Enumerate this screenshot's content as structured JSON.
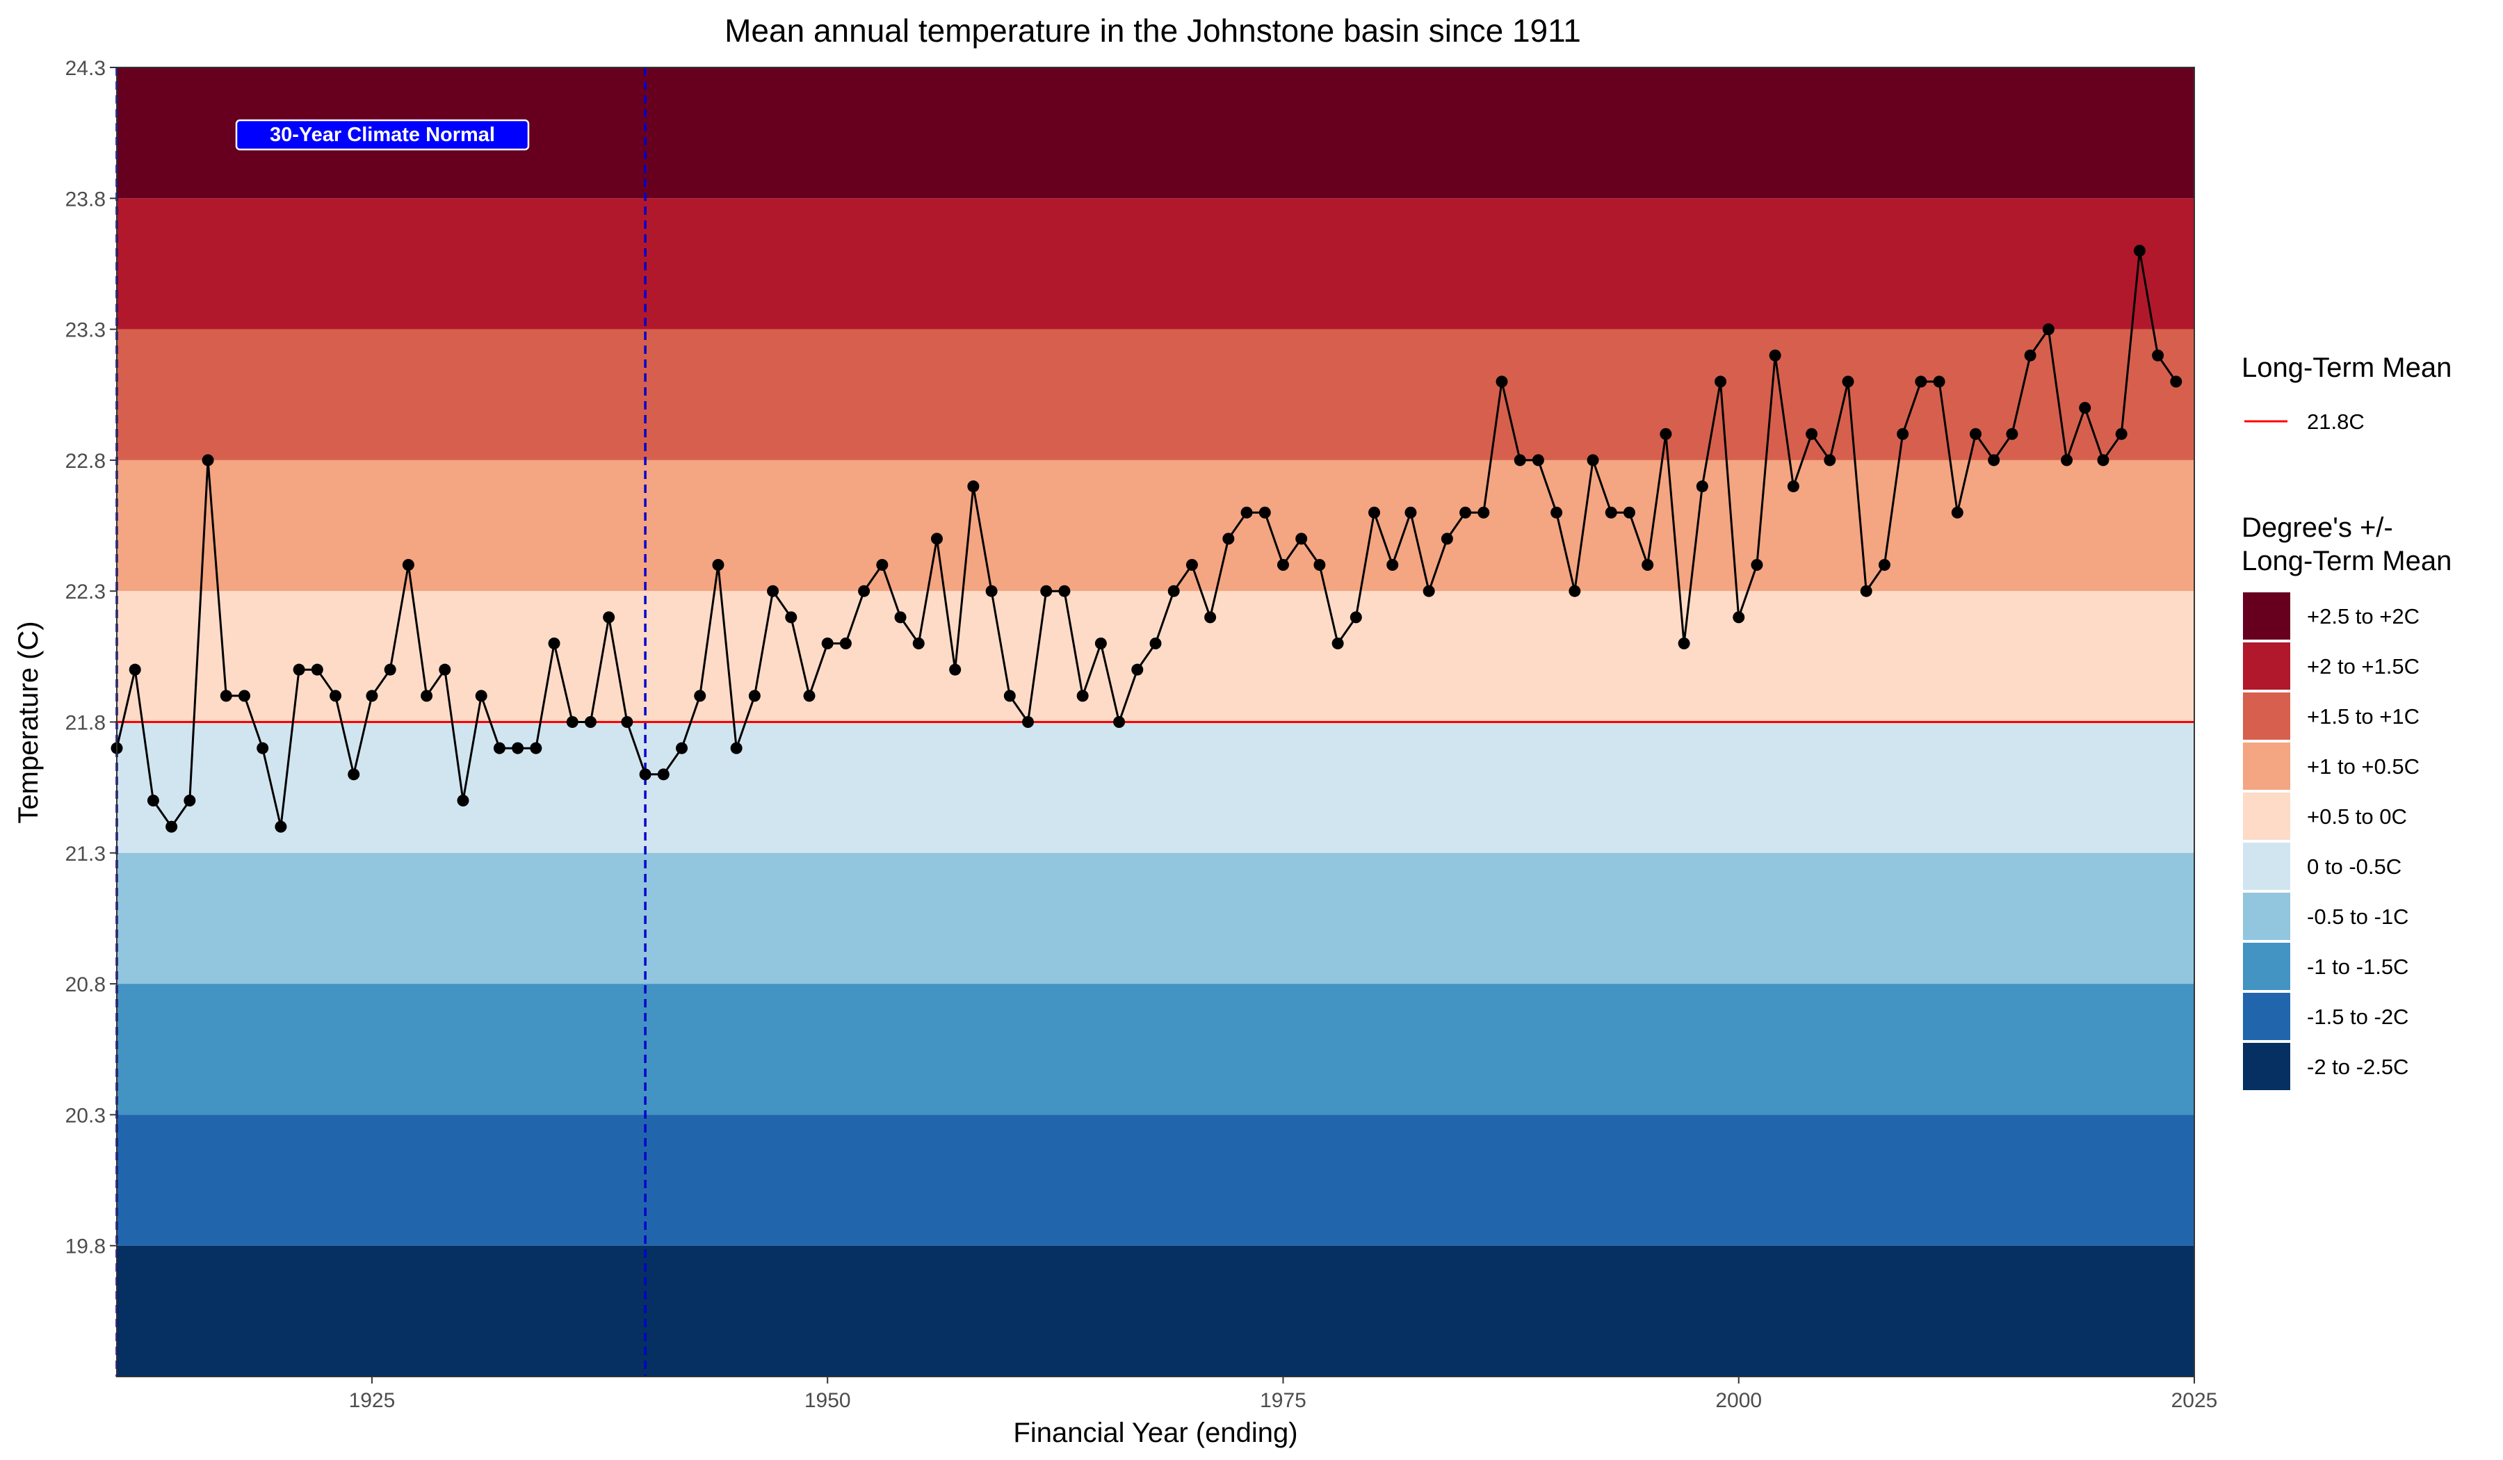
{
  "chart_data": {
    "type": "line",
    "title": "Mean annual temperature in the Johnstone basin since 1911",
    "xlabel": "Financial Year (ending)",
    "ylabel": "Temperature (C)",
    "xlim": [
      1911,
      2025
    ],
    "ylim": [
      19.3,
      24.3
    ],
    "x_ticks": [
      1925,
      1950,
      1975,
      2000,
      2025
    ],
    "y_ticks": [
      19.8,
      20.3,
      20.8,
      21.3,
      21.8,
      22.3,
      22.8,
      23.3,
      23.8,
      24.3
    ],
    "long_term_mean": {
      "value": 21.8,
      "color": "#ff0000"
    },
    "climate_normal": {
      "label": "30-Year Climate Normal",
      "start": 1911,
      "end": 1940,
      "color": "#0000cc"
    },
    "bands": [
      {
        "label": "+2.5 to +2C",
        "from": 23.8,
        "to": 24.3,
        "color": "#67001f"
      },
      {
        "label": "+2 to +1.5C",
        "from": 23.3,
        "to": 23.8,
        "color": "#b2182b"
      },
      {
        "label": "+1.5 to +1C",
        "from": 22.8,
        "to": 23.3,
        "color": "#d6604d"
      },
      {
        "label": "+1 to +0.5C",
        "from": 22.3,
        "to": 22.8,
        "color": "#f4a582"
      },
      {
        "label": "+0.5 to 0C",
        "from": 21.8,
        "to": 22.3,
        "color": "#fddbc7"
      },
      {
        "label": "0 to -0.5C",
        "from": 21.3,
        "to": 21.8,
        "color": "#d1e5f0"
      },
      {
        "label": "-0.5 to -1C",
        "from": 20.8,
        "to": 21.3,
        "color": "#92c5de"
      },
      {
        "label": "-1 to -1.5C",
        "from": 20.3,
        "to": 20.8,
        "color": "#4393c3"
      },
      {
        "label": "-1.5 to -2C",
        "from": 19.8,
        "to": 20.3,
        "color": "#2166ac"
      },
      {
        "label": "-2 to -2.5C",
        "from": 19.3,
        "to": 19.8,
        "color": "#053061"
      }
    ],
    "series": [
      {
        "x": [
          1911,
          1912,
          1913,
          1914,
          1915,
          1916,
          1917,
          1918,
          1919,
          1920,
          1921,
          1922,
          1923,
          1924,
          1925,
          1926,
          1927,
          1928,
          1929,
          1930,
          1931,
          1932,
          1933,
          1934,
          1935,
          1936,
          1937,
          1938,
          1939,
          1940,
          1941,
          1942,
          1943,
          1944,
          1945,
          1946,
          1947,
          1948,
          1949,
          1950,
          1951,
          1952,
          1953,
          1954,
          1955,
          1956,
          1957,
          1958,
          1959,
          1960,
          1961,
          1962,
          1963,
          1964,
          1965,
          1966,
          1967,
          1968,
          1969,
          1970,
          1971,
          1972,
          1973,
          1974,
          1975,
          1976,
          1977,
          1978,
          1979,
          1980,
          1981,
          1982,
          1983,
          1984,
          1985,
          1986,
          1987,
          1988,
          1989,
          1990,
          1991,
          1992,
          1993,
          1994,
          1995,
          1996,
          1997,
          1998,
          1999,
          2000,
          2001,
          2002,
          2003,
          2004,
          2005,
          2006,
          2007,
          2008,
          2009,
          2010,
          2011,
          2012,
          2013,
          2014,
          2015,
          2016,
          2017,
          2018,
          2019,
          2020,
          2021,
          2022,
          2023,
          2024
        ],
        "values": [
          21.7,
          22.0,
          21.5,
          21.4,
          21.5,
          22.8,
          21.9,
          21.9,
          21.7,
          21.4,
          22.0,
          22.0,
          21.9,
          21.6,
          21.9,
          22.0,
          22.4,
          21.9,
          22.0,
          21.5,
          21.9,
          21.7,
          21.7,
          21.7,
          22.1,
          21.8,
          21.8,
          22.2,
          21.8,
          21.6,
          21.6,
          21.7,
          21.9,
          22.4,
          21.7,
          21.9,
          22.3,
          22.2,
          21.9,
          22.1,
          22.1,
          22.3,
          22.4,
          22.2,
          22.1,
          22.5,
          22.0,
          22.7,
          22.3,
          21.9,
          21.8,
          22.3,
          22.3,
          21.9,
          22.1,
          21.8,
          22.0,
          22.1,
          22.3,
          22.4,
          22.2,
          22.5,
          22.6,
          22.6,
          22.4,
          22.5,
          22.4,
          22.1,
          22.2,
          22.6,
          22.4,
          22.6,
          22.3,
          22.5,
          22.6,
          22.6,
          23.1,
          22.8,
          22.8,
          22.6,
          22.3,
          22.8,
          22.6,
          22.6,
          22.4,
          22.9,
          22.1,
          22.7,
          23.1,
          22.2,
          22.4,
          23.2,
          22.7,
          22.9,
          22.8,
          23.1,
          22.3,
          22.4,
          22.9,
          23.1,
          23.1,
          22.6,
          22.9,
          22.8,
          22.9,
          23.2,
          23.3,
          22.8,
          23.0,
          22.8,
          22.9,
          23.6,
          23.2,
          23.1
        ]
      }
    ],
    "legend": {
      "placement": "right",
      "mean_title": "Long-Term Mean",
      "mean_label": "21.8C",
      "bands_title_line1": "Degree's +/-",
      "bands_title_line2": "Long-Term Mean"
    }
  }
}
